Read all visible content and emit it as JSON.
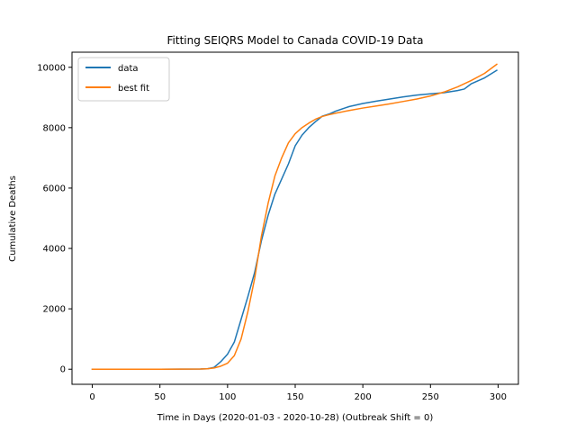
{
  "chart_data": {
    "type": "line",
    "title": "Fitting SEIQRS Model to Canada COVID-19 Data",
    "xlabel": "Time in Days (2020-01-03 - 2020-10-28) (Outbreak Shift = 0)",
    "ylabel": "Cumulative Deaths",
    "xlim": [
      -15,
      315
    ],
    "ylim": [
      -500,
      10500
    ],
    "xticks": [
      0,
      50,
      100,
      150,
      200,
      250,
      300
    ],
    "yticks": [
      0,
      2000,
      4000,
      6000,
      8000,
      10000
    ],
    "grid": false,
    "legend_position": "top-left",
    "colors": {
      "data": "#1f77b4",
      "best_fit": "#ff7f0e"
    },
    "series": [
      {
        "name": "data",
        "color": "#1f77b4",
        "x": [
          0,
          50,
          80,
          85,
          90,
          95,
          100,
          105,
          110,
          115,
          120,
          125,
          130,
          135,
          140,
          145,
          150,
          155,
          160,
          165,
          170,
          175,
          180,
          190,
          200,
          210,
          220,
          230,
          240,
          250,
          260,
          270,
          275,
          280,
          290,
          299
        ],
        "y": [
          0,
          0,
          5,
          15,
          60,
          250,
          500,
          900,
          1650,
          2400,
          3200,
          4250,
          5100,
          5800,
          6300,
          6800,
          7400,
          7750,
          8000,
          8200,
          8380,
          8450,
          8550,
          8700,
          8800,
          8880,
          8950,
          9020,
          9080,
          9120,
          9160,
          9230,
          9280,
          9450,
          9650,
          9900
        ]
      },
      {
        "name": "best fit",
        "color": "#ff7f0e",
        "x": [
          0,
          50,
          80,
          85,
          90,
          95,
          100,
          105,
          110,
          115,
          120,
          125,
          130,
          135,
          140,
          145,
          150,
          155,
          160,
          165,
          170,
          175,
          180,
          190,
          200,
          210,
          220,
          230,
          240,
          250,
          260,
          270,
          280,
          290,
          299
        ],
        "y": [
          0,
          0,
          5,
          15,
          40,
          100,
          200,
          450,
          1000,
          1900,
          3000,
          4400,
          5500,
          6400,
          7000,
          7500,
          7800,
          8000,
          8150,
          8280,
          8370,
          8430,
          8480,
          8570,
          8650,
          8720,
          8790,
          8870,
          8950,
          9050,
          9180,
          9350,
          9560,
          9800,
          10100
        ]
      }
    ]
  }
}
